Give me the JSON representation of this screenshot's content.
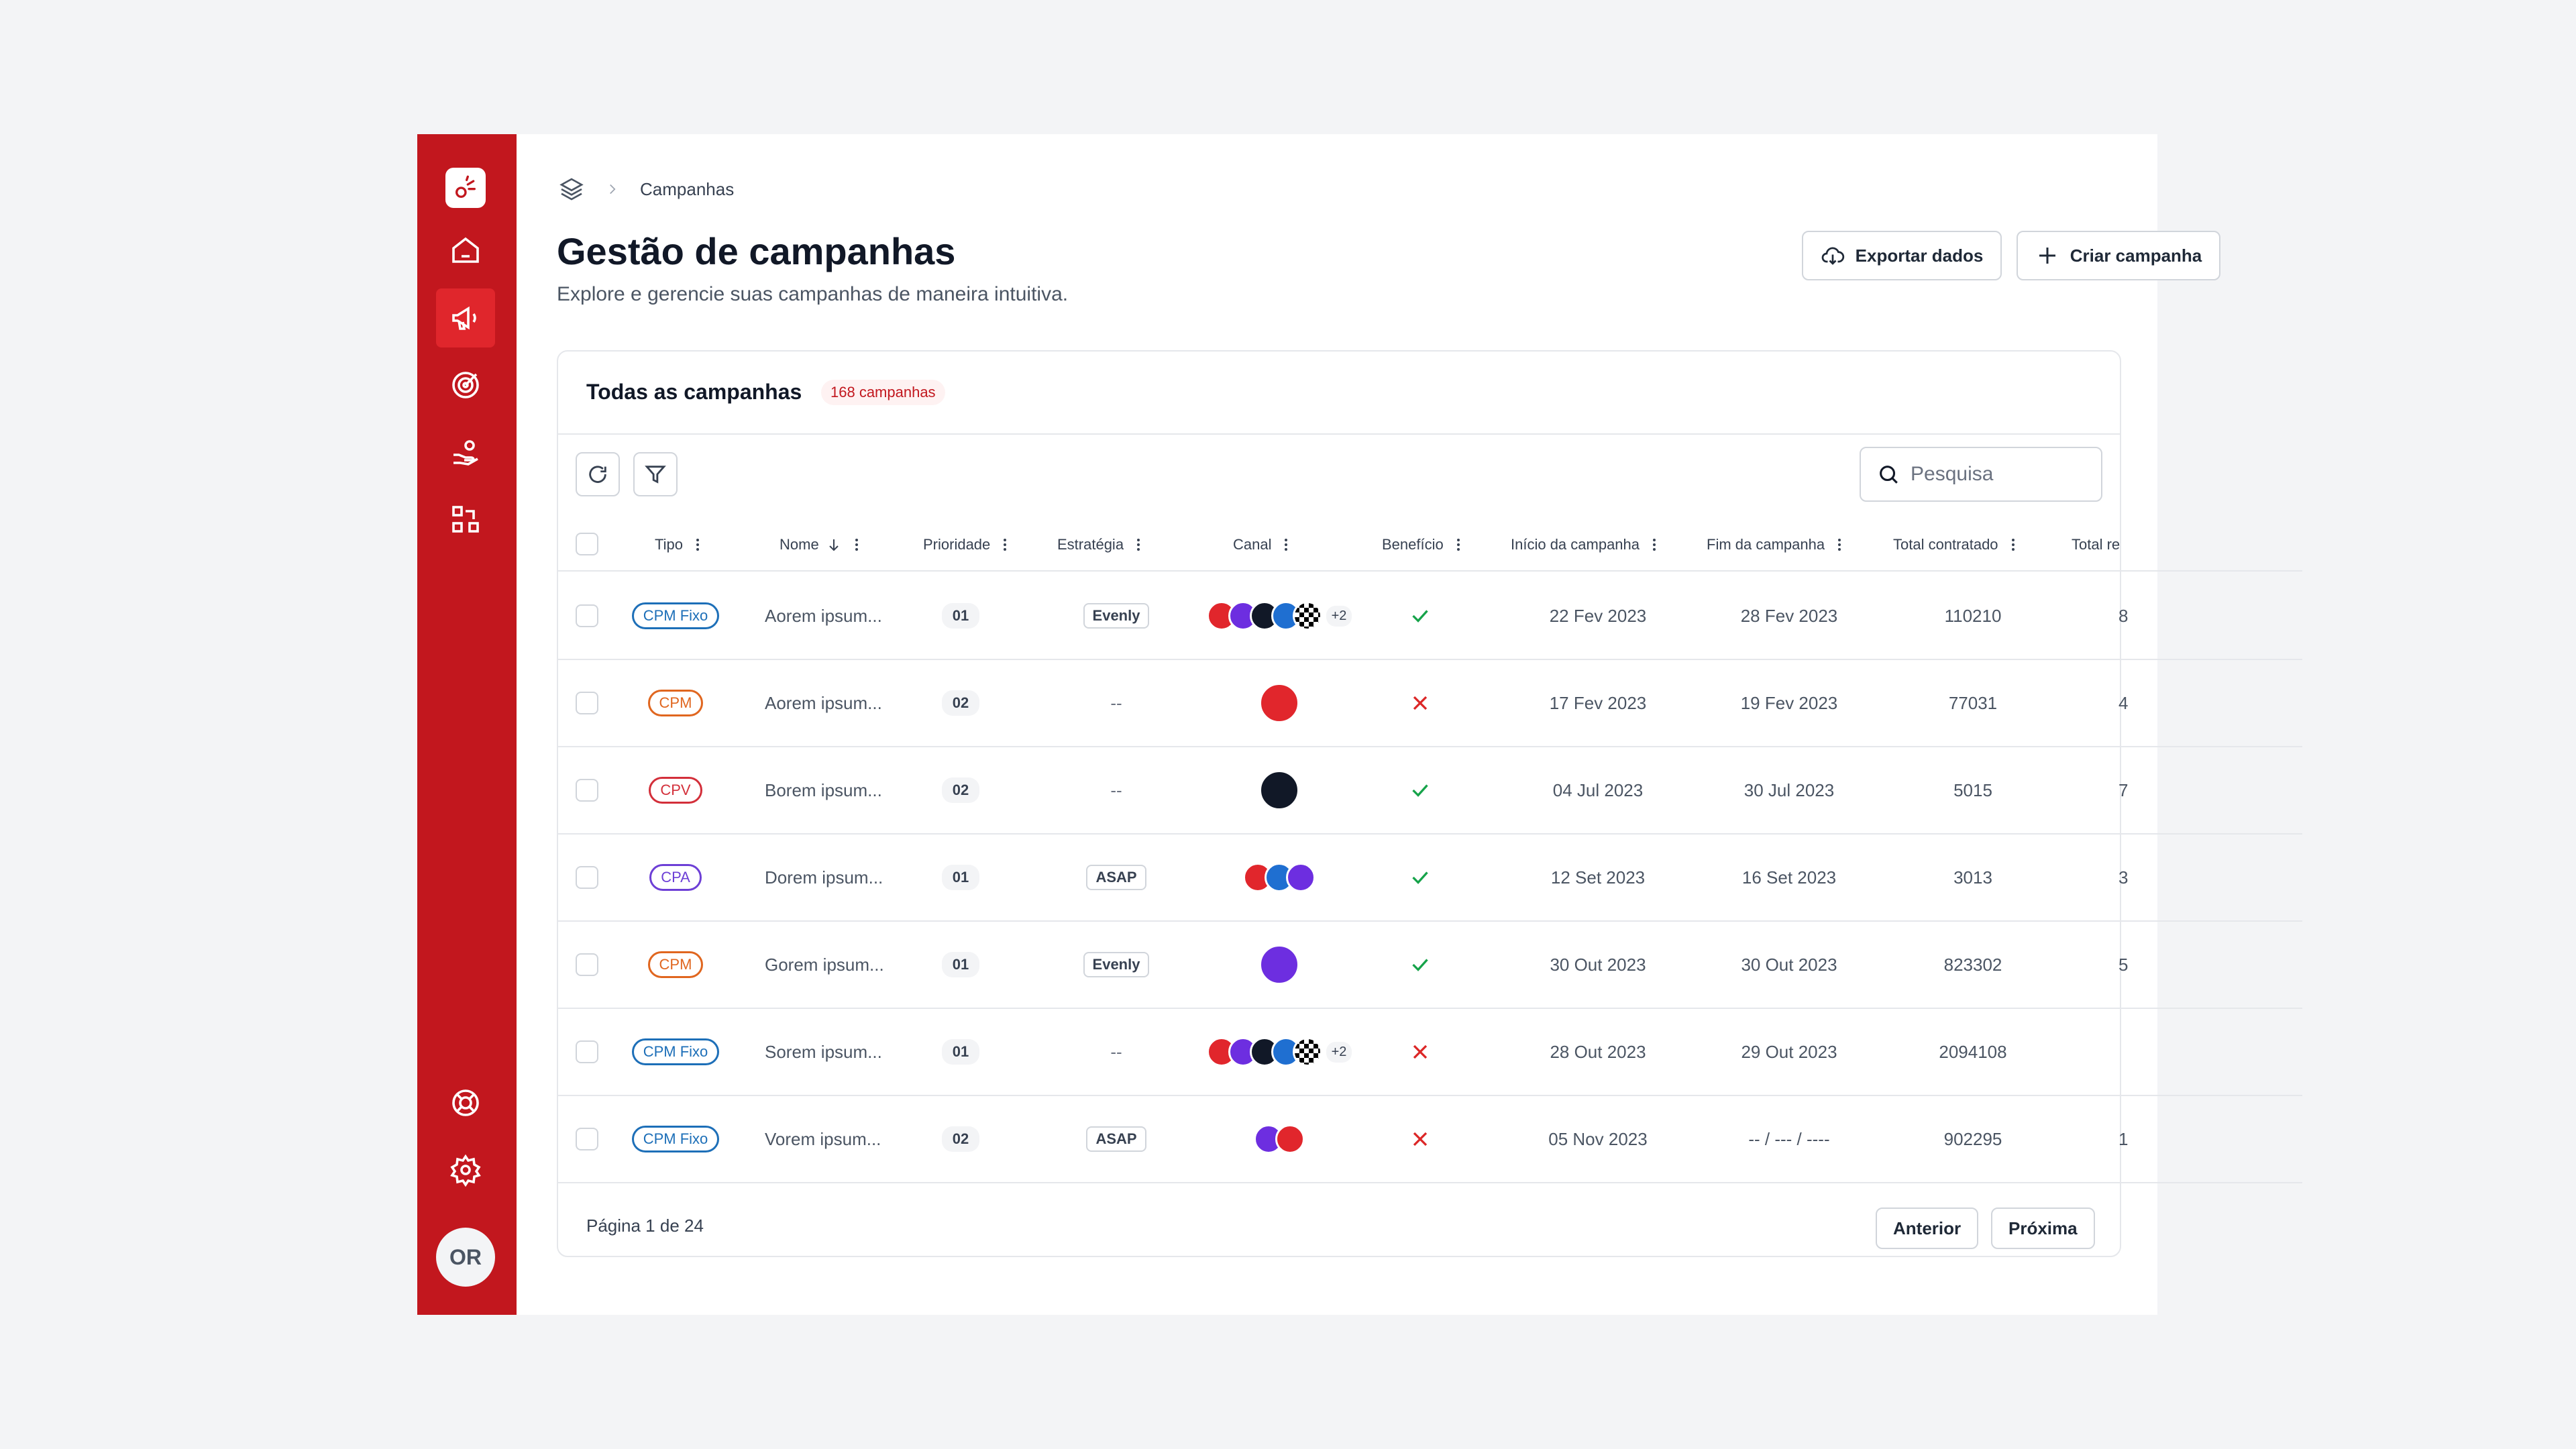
{
  "nav": {
    "items": [
      {
        "icon": "home-icon"
      },
      {
        "icon": "megaphone-icon",
        "active": true
      },
      {
        "icon": "target-icon"
      },
      {
        "icon": "hand-coins-icon"
      },
      {
        "icon": "workflow-icon"
      }
    ],
    "bottom": [
      {
        "icon": "lifebuoy-icon"
      },
      {
        "icon": "gear-icon"
      }
    ],
    "avatar": "OR",
    "colors": {
      "sidebar": "#c2171e",
      "active": "#e0262c"
    }
  },
  "breadcrumb": {
    "current": "Campanhas"
  },
  "header": {
    "title": "Gestão de campanhas",
    "subtitle": "Explore e gerencie suas campanhas de maneira intuitiva.",
    "export_label": "Exportar dados",
    "create_label": "Criar campanha"
  },
  "card": {
    "title": "Todas as campanhas",
    "count": "168 campanhas",
    "search_placeholder": "Pesquisa"
  },
  "table": {
    "columns": {
      "tipo": "Tipo",
      "nome": "Nome",
      "prioridade": "Prioridade",
      "estrategia": "Estratégia",
      "canal": "Canal",
      "beneficio": "Benefício",
      "inicio": "Início da campanha",
      "fim": "Fim da campanha",
      "total_contratado": "Total contratado",
      "total_r": "Total re"
    },
    "rows": [
      {
        "tipo": "CPM Fixo",
        "nome": "Aorem ipsum...",
        "prioridade": "01",
        "estrategia": "Evenly",
        "canal": [
          "claro",
          "push",
          "claro-dark",
          "claro-blue",
          "checker"
        ],
        "canal_more": "+2",
        "beneficio": true,
        "inicio": "22 Fev 2023",
        "fim": "28 Fev 2023",
        "total": "110210",
        "total_r": "8"
      },
      {
        "tipo": "CPM",
        "nome": "Aorem ipsum...",
        "prioridade": "02",
        "estrategia": "--",
        "canal": [
          "claro"
        ],
        "canal_more": "",
        "beneficio": false,
        "inicio": "17 Fev 2023",
        "fim": "19 Fev 2023",
        "total": "77031",
        "total_r": "4"
      },
      {
        "tipo": "CPV",
        "nome": "Borem ipsum...",
        "prioridade": "02",
        "estrategia": "--",
        "canal": [
          "claro-dark"
        ],
        "canal_more": "",
        "beneficio": true,
        "inicio": "04 Jul 2023",
        "fim": "30 Jul 2023",
        "total": "5015",
        "total_r": "7"
      },
      {
        "tipo": "CPA",
        "nome": "Dorem ipsum...",
        "prioridade": "01",
        "estrategia": "ASAP",
        "canal": [
          "claro",
          "claro-blue",
          "push"
        ],
        "canal_more": "",
        "beneficio": true,
        "inicio": "12 Set 2023",
        "fim": "16 Set 2023",
        "total": "3013",
        "total_r": "3"
      },
      {
        "tipo": "CPM",
        "nome": "Gorem ipsum...",
        "prioridade": "01",
        "estrategia": "Evenly",
        "canal": [
          "push"
        ],
        "canal_more": "",
        "beneficio": true,
        "inicio": "30 Out 2023",
        "fim": "30 Out 2023",
        "total": "823302",
        "total_r": "5"
      },
      {
        "tipo": "CPM Fixo",
        "nome": "Sorem ipsum...",
        "prioridade": "01",
        "estrategia": "--",
        "canal": [
          "claro",
          "push",
          "claro-dark",
          "claro-blue",
          "checker"
        ],
        "canal_more": "+2",
        "beneficio": false,
        "inicio": "28 Out 2023",
        "fim": "29 Out 2023",
        "total": "2094108",
        "total_r": ""
      },
      {
        "tipo": "CPM Fixo",
        "nome": "Vorem ipsum...",
        "prioridade": "02",
        "estrategia": "ASAP",
        "canal": [
          "push",
          "claro"
        ],
        "canal_more": "",
        "beneficio": false,
        "inicio": "05 Nov 2023",
        "fim": "-- / --- / ----",
        "total": "902295",
        "total_r": "1"
      }
    ]
  },
  "type_colors": {
    "CPM Fixo": "#1d6fb8",
    "CPM": "#e0661f",
    "CPV": "#d32f3a",
    "CPA": "#6d3fd6"
  },
  "channel_colors": {
    "claro": "#e1262c",
    "push": "#6d2ee0",
    "claro-dark": "#111827",
    "claro-blue": "#1f6fd1",
    "checker": "#000000"
  },
  "pagination": {
    "info": "Página 1 de 24",
    "prev": "Anterior",
    "next": "Próxima"
  }
}
